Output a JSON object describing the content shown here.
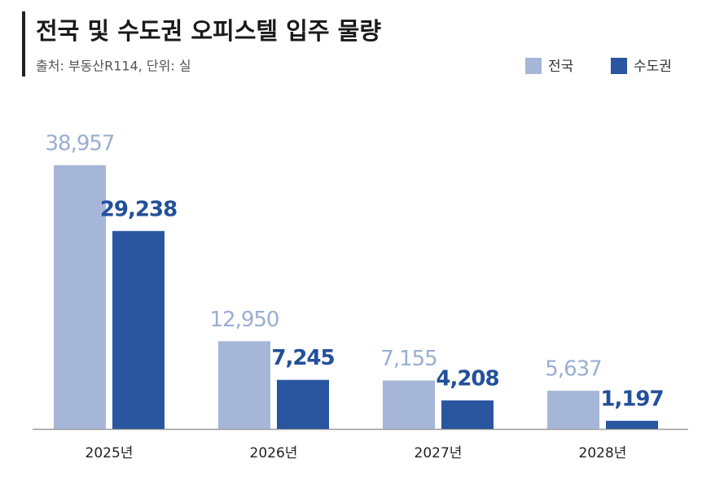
{
  "chart_data": {
    "type": "bar",
    "title": "전국 및 수도권 오피스텔 입주 물량",
    "subtitle": "출처: 부동산R114, 단위: 실",
    "categories": [
      "2025년",
      "2026년",
      "2027년",
      "2028년"
    ],
    "series": [
      {
        "name": "전국",
        "color": "#a5b6d9",
        "label_color": "#9aaed2",
        "values": [
          38957,
          12950,
          7155,
          5637
        ],
        "value_labels": [
          "38,957",
          "12,950",
          "7,155",
          "5,637"
        ]
      },
      {
        "name": "수도권",
        "color": "#2a56a0",
        "label_color": "#23509a",
        "values": [
          29238,
          7245,
          4208,
          1197
        ],
        "value_labels": [
          "29,238",
          "7,245",
          "4,208",
          "1,197"
        ]
      }
    ],
    "legend": "top-right"
  }
}
